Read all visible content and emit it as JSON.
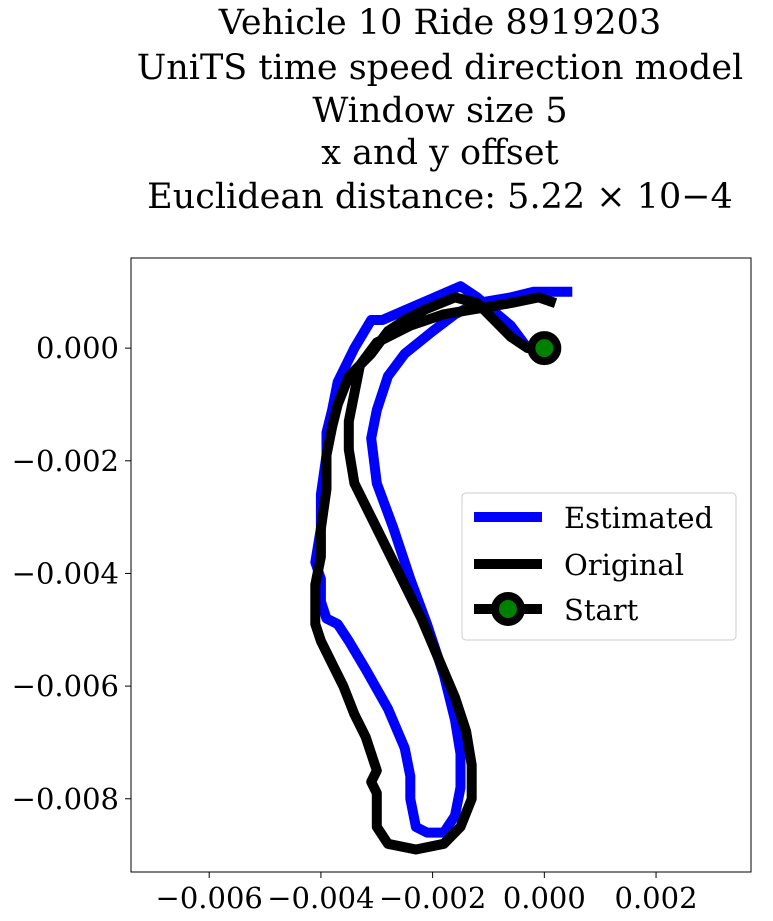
{
  "chart_data": {
    "type": "line",
    "title_lines": [
      "Vehicle 10 Ride 8919203",
      "UniTS time speed direction model",
      "Window size 5",
      "x and y offset",
      "Euclidean distance: 5.22 × 10−4"
    ],
    "xlabel": "",
    "ylabel": "",
    "xlim": [
      -0.0074,
      0.0037
    ],
    "ylim": [
      -0.0093,
      0.0016
    ],
    "x_ticks": [
      -0.006,
      -0.004,
      -0.002,
      0.0,
      0.002
    ],
    "x_tick_labels": [
      "−0.006",
      "−0.004",
      "−0.002",
      "0.000",
      "0.002"
    ],
    "y_ticks": [
      0.0,
      -0.002,
      -0.004,
      -0.006,
      -0.008
    ],
    "y_tick_labels": [
      "0.000",
      "−0.002",
      "−0.004",
      "−0.006",
      "−0.008"
    ],
    "grid": false,
    "legend_position": "right",
    "series": [
      {
        "name": "Estimated",
        "color": "#0000ff",
        "x": [
          0.0005,
          0.0002,
          -0.0002,
          -0.0006,
          -0.0012,
          -0.0016,
          -0.002,
          -0.0025,
          -0.0028,
          -0.003,
          -0.0031,
          -0.003,
          -0.0027,
          -0.0024,
          -0.0021,
          -0.0018,
          -0.0016,
          -0.0015,
          -0.0015,
          -0.0016,
          -0.0018,
          -0.0021,
          -0.0023,
          -0.0024,
          -0.0024,
          -0.0025,
          -0.0028,
          -0.0032,
          -0.0035,
          -0.0037,
          -0.0039,
          -0.004,
          -0.004,
          -0.0041,
          -0.004,
          -0.004,
          -0.0039,
          -0.0039,
          -0.0038,
          -0.0037,
          -0.0035,
          -0.0034,
          -0.0031,
          -0.0029,
          -0.0015,
          -0.0012,
          -0.0006,
          -0.0003
        ],
        "y": [
          0.001,
          0.001,
          0.001,
          0.0009,
          0.0008,
          0.0006,
          0.0003,
          -0.0001,
          -0.0005,
          -0.0011,
          -0.0016,
          -0.0024,
          -0.0032,
          -0.0041,
          -0.0049,
          -0.0058,
          -0.0066,
          -0.0072,
          -0.0078,
          -0.0083,
          -0.0086,
          -0.0086,
          -0.0085,
          -0.008,
          -0.0076,
          -0.0071,
          -0.0064,
          -0.0057,
          -0.0052,
          -0.0049,
          -0.0048,
          -0.0045,
          -0.0041,
          -0.0038,
          -0.0032,
          -0.0026,
          -0.0019,
          -0.0015,
          -0.0011,
          -0.0006,
          -0.0002,
          0.0,
          0.0005,
          0.0005,
          0.0011,
          0.0009,
          0.0004,
          0.0
        ]
      },
      {
        "name": "Original",
        "color": "#000000",
        "x": [
          0.0002,
          -0.0001,
          -0.0006,
          -0.0012,
          -0.0018,
          -0.0024,
          -0.003,
          -0.0033,
          -0.0034,
          -0.0035,
          -0.0035,
          -0.0034,
          -0.003,
          -0.0026,
          -0.0022,
          -0.0019,
          -0.0016,
          -0.0014,
          -0.0013,
          -0.0013,
          -0.0015,
          -0.0018,
          -0.0023,
          -0.0028,
          -0.003,
          -0.003,
          -0.003,
          -0.0031,
          -0.003,
          -0.0031,
          -0.0032,
          -0.0034,
          -0.0036,
          -0.0038,
          -0.004,
          -0.0041,
          -0.0041,
          -0.0041,
          -0.004,
          -0.004,
          -0.0039,
          -0.0039,
          -0.0038,
          -0.0037,
          -0.0035,
          -0.0031,
          -0.0028,
          -0.0025,
          -0.0021,
          -0.0016,
          -0.0012,
          -0.001,
          -0.0009,
          -0.0006,
          -0.0003,
          0.0
        ],
        "y": [
          0.0008,
          0.0009,
          0.0008,
          0.0007,
          0.0006,
          0.0004,
          0.0001,
          -0.0003,
          -0.0008,
          -0.0013,
          -0.0018,
          -0.0024,
          -0.0032,
          -0.004,
          -0.0048,
          -0.0055,
          -0.0062,
          -0.0068,
          -0.0074,
          -0.008,
          -0.0085,
          -0.0088,
          -0.0089,
          -0.0088,
          -0.0085,
          -0.0082,
          -0.0079,
          -0.0077,
          -0.0075,
          -0.0072,
          -0.0069,
          -0.0065,
          -0.006,
          -0.0056,
          -0.0052,
          -0.0049,
          -0.0046,
          -0.0042,
          -0.0037,
          -0.0032,
          -0.0025,
          -0.0019,
          -0.0014,
          -0.001,
          -0.0005,
          -0.0001,
          0.0003,
          0.0005,
          0.0007,
          0.0009,
          0.0008,
          0.0006,
          0.0005,
          0.0002,
          0.0,
          0.0
        ]
      },
      {
        "name": "Start",
        "color": "#000000",
        "marker_color": "#008000",
        "x": [
          0.0
        ],
        "y": [
          0.0
        ]
      }
    ]
  }
}
